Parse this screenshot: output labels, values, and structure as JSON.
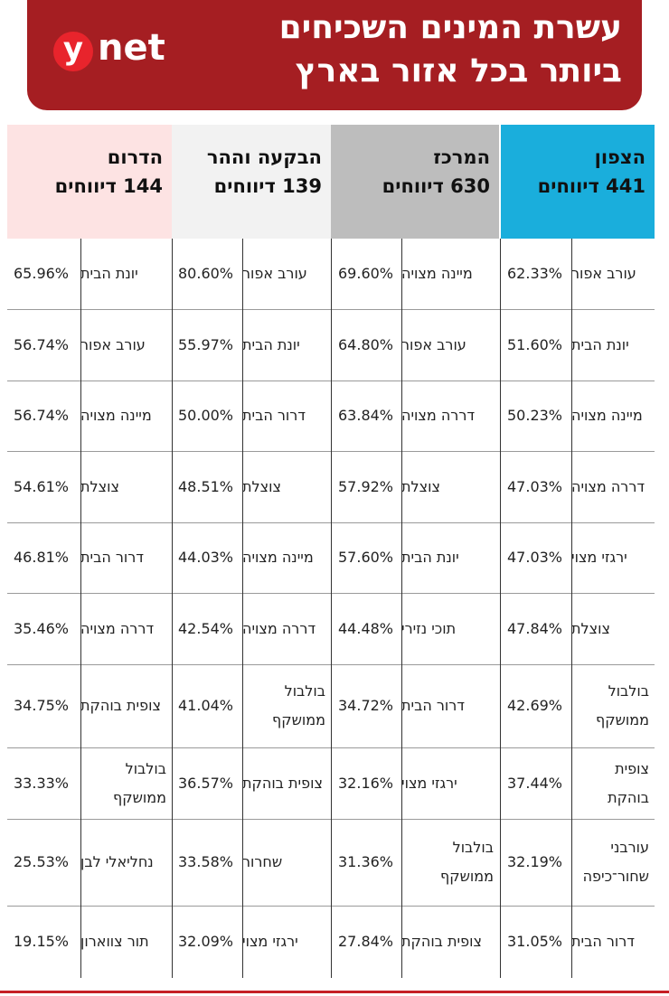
{
  "header": {
    "title_line1": "עשרת המינים השכיחים",
    "title_line2": "ביותר בכל אזור בארץ",
    "logo_letter": "y",
    "logo_text": "net"
  },
  "columns": [
    {
      "name": "הצפון",
      "reports": "441 דיווחים",
      "color": "#1aaedc"
    },
    {
      "name": "המרכז",
      "reports": "630 דיווחים",
      "color": "#bdbdbd"
    },
    {
      "name": "הבקעה וההר",
      "reports": "139 דיווחים",
      "color": "#f2f2f2"
    },
    {
      "name": "הדרום",
      "reports": "144 דיווחים",
      "color": "#fde3e3"
    }
  ],
  "rows": [
    [
      [
        "עורב אפור",
        "62.33%"
      ],
      [
        "מיינה מצויה",
        "69.60%"
      ],
      [
        "עורב אפור",
        "80.60%"
      ],
      [
        "יונת הבית",
        "65.96%"
      ]
    ],
    [
      [
        "יונת הבית",
        "51.60%"
      ],
      [
        "עורב אפור",
        "64.80%"
      ],
      [
        "יונת הבית",
        "55.97%"
      ],
      [
        "עורב אפור",
        "56.74%"
      ]
    ],
    [
      [
        "מיינה מצויה",
        "50.23%"
      ],
      [
        "דררה מצויה",
        "63.84%"
      ],
      [
        "דרור הבית",
        "50.00%"
      ],
      [
        "מיינה מצויה",
        "56.74%"
      ]
    ],
    [
      [
        "דררה מצויה",
        "47.03%"
      ],
      [
        "צוצלת",
        "57.92%"
      ],
      [
        "צוצלת",
        "48.51%"
      ],
      [
        "צוצלת",
        "54.61%"
      ]
    ],
    [
      [
        "ירגזי מצוי",
        "47.03%"
      ],
      [
        "יונת הבית",
        "57.60%"
      ],
      [
        "מיינה מצויה",
        "44.03%"
      ],
      [
        "דרור הבית",
        "46.81%"
      ]
    ],
    [
      [
        "צוצלת",
        "47.84%"
      ],
      [
        "תוכי נזירי",
        "44.48%"
      ],
      [
        "דררה מצויה",
        "42.54%"
      ],
      [
        "דררה מצויה",
        "35.46%"
      ]
    ],
    [
      [
        "בולבול ממושקף",
        "42.69%"
      ],
      [
        "דרור הבית",
        "34.72%"
      ],
      [
        "בולבול ממושקף",
        "41.04%"
      ],
      [
        "צופית בוהקת",
        "34.75%"
      ]
    ],
    [
      [
        "צופית בוהקת",
        "37.44%"
      ],
      [
        "ירגזי מצוי",
        "32.16%"
      ],
      [
        "צופית בוהקת",
        "36.57%"
      ],
      [
        "בולבול ממושקף",
        "33.33%"
      ]
    ],
    [
      [
        "עורבני שחור־כיפה",
        "32.19%"
      ],
      [
        "בולבול ממושקף",
        "31.36%"
      ],
      [
        "שחרור",
        "33.58%"
      ],
      [
        "נחליאלי לבן",
        "25.53%"
      ]
    ],
    [
      [
        "דרור הבית",
        "31.05%"
      ],
      [
        "צופית בוהקת",
        "27.84%"
      ],
      [
        "ירגזי מצוי",
        "32.09%"
      ],
      [
        "תור צווארון",
        "19.15%"
      ]
    ]
  ]
}
